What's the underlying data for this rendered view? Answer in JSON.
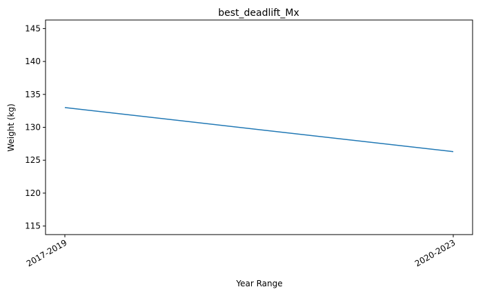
{
  "chart_data": {
    "type": "line",
    "title": "best_deadlift_Mx",
    "xlabel": "Year Range",
    "ylabel": "Weight (kg)",
    "categories": [
      "2017-2019",
      "2020-2023"
    ],
    "series": [
      {
        "values": [
          133.0,
          126.3
        ],
        "color": "#1f77b4"
      }
    ],
    "ylim": [
      113.7,
      146.3
    ],
    "yticks": [
      115,
      120,
      125,
      130,
      135,
      140,
      145
    ],
    "grid": false,
    "legend": "none"
  }
}
